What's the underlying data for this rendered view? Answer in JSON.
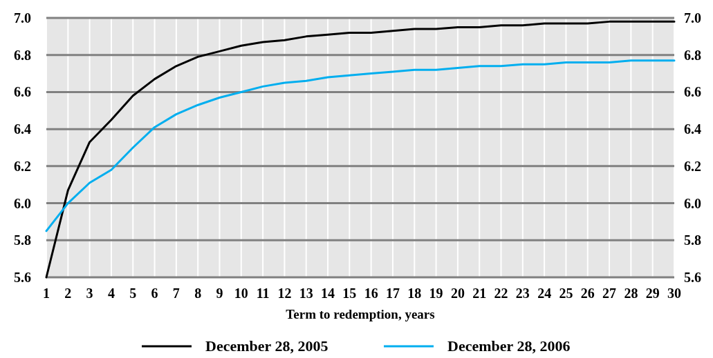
{
  "chart_data": {
    "type": "line",
    "xlabel": "Term to redemption, years",
    "x": [
      1,
      2,
      3,
      4,
      5,
      6,
      7,
      8,
      9,
      10,
      11,
      12,
      13,
      14,
      15,
      16,
      17,
      18,
      19,
      20,
      21,
      22,
      23,
      24,
      25,
      26,
      27,
      28,
      29,
      30
    ],
    "xlim": [
      1,
      30
    ],
    "xticks": [
      1,
      2,
      3,
      4,
      5,
      6,
      7,
      8,
      9,
      10,
      11,
      12,
      13,
      14,
      15,
      16,
      17,
      18,
      19,
      20,
      21,
      22,
      23,
      24,
      25,
      26,
      27,
      28,
      29,
      30
    ],
    "ylim": [
      5.6,
      7.0
    ],
    "yticks": [
      {
        "value": 5.6,
        "label": "5.6"
      },
      {
        "value": 5.8,
        "label": "5.8"
      },
      {
        "value": 6.0,
        "label": "6.0"
      },
      {
        "value": 6.2,
        "label": "6.2"
      },
      {
        "value": 6.4,
        "label": "6.4"
      },
      {
        "value": 6.6,
        "label": "6.6"
      },
      {
        "value": 6.8,
        "label": "6.8"
      },
      {
        "value": 7.0,
        "label": "7.0"
      }
    ],
    "y2lim": [
      5.6,
      7.0
    ],
    "y2ticks": [
      {
        "value": 5.6,
        "label": "5.6"
      },
      {
        "value": 5.8,
        "label": "5.8"
      },
      {
        "value": 6.0,
        "label": "6.0"
      },
      {
        "value": 6.2,
        "label": "6.2"
      },
      {
        "value": 6.4,
        "label": "6.4"
      },
      {
        "value": 6.6,
        "label": "6.6"
      },
      {
        "value": 6.8,
        "label": "6.8"
      },
      {
        "value": 7.0,
        "label": "7.0"
      }
    ],
    "grid": true,
    "legend": "bottom",
    "marker": "none",
    "line_style": "solid",
    "series": [
      {
        "name": "December 28, 2005",
        "color": "#000000",
        "values": [
          5.6,
          6.07,
          6.33,
          6.45,
          6.58,
          6.67,
          6.74,
          6.79,
          6.82,
          6.85,
          6.87,
          6.88,
          6.9,
          6.91,
          6.92,
          6.92,
          6.93,
          6.94,
          6.94,
          6.95,
          6.95,
          6.96,
          6.96,
          6.97,
          6.97,
          6.97,
          6.98,
          6.98,
          6.98,
          6.98
        ]
      },
      {
        "name": "December 28, 2006",
        "color": "#00aeef",
        "values": [
          5.85,
          6.0,
          6.11,
          6.18,
          6.3,
          6.41,
          6.48,
          6.53,
          6.57,
          6.6,
          6.63,
          6.65,
          6.66,
          6.68,
          6.69,
          6.7,
          6.71,
          6.72,
          6.72,
          6.73,
          6.74,
          6.74,
          6.75,
          6.75,
          6.76,
          6.76,
          6.76,
          6.77,
          6.77,
          6.77
        ]
      }
    ]
  }
}
